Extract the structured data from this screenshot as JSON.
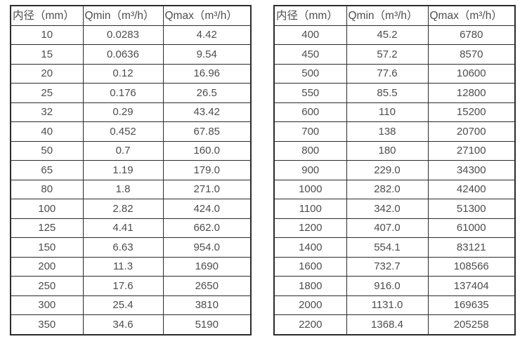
{
  "colors": {
    "background": "#ffffff",
    "border": "#2b2b2b",
    "text": "#4d4d4d"
  },
  "tables": [
    {
      "name": "flow-table-left",
      "headers": [
        "内径（mm）",
        "Qmin（m³/h）",
        "Qmax（m³/h）"
      ],
      "rows": [
        [
          "10",
          "0.0283",
          "4.42"
        ],
        [
          "15",
          "0.0636",
          "9.54"
        ],
        [
          "20",
          "0.12",
          "16.96"
        ],
        [
          "25",
          "0.176",
          "26.5"
        ],
        [
          "32",
          "0.29",
          "43.42"
        ],
        [
          "40",
          "0.452",
          "67.85"
        ],
        [
          "50",
          "0.7",
          "160.0"
        ],
        [
          "65",
          "1.19",
          "179.0"
        ],
        [
          "80",
          "1.8",
          "271.0"
        ],
        [
          "100",
          "2.82",
          "424.0"
        ],
        [
          "125",
          "4.41",
          "662.0"
        ],
        [
          "150",
          "6.63",
          "954.0"
        ],
        [
          "200",
          "11.3",
          "1690"
        ],
        [
          "250",
          "17.6",
          "2650"
        ],
        [
          "300",
          "25.4",
          "3810"
        ],
        [
          "350",
          "34.6",
          "5190"
        ]
      ]
    },
    {
      "name": "flow-table-right",
      "headers": [
        "内径（mm）",
        "Qmin（m³/h）",
        "Qmax（m³/h）"
      ],
      "rows": [
        [
          "400",
          "45.2",
          "6780"
        ],
        [
          "450",
          "57.2",
          "8570"
        ],
        [
          "500",
          "77.6",
          "10600"
        ],
        [
          "550",
          "85.5",
          "12800"
        ],
        [
          "600",
          "110",
          "15200"
        ],
        [
          "700",
          "138",
          "20700"
        ],
        [
          "800",
          "180",
          "27100"
        ],
        [
          "900",
          "229.0",
          "34300"
        ],
        [
          "1000",
          "282.0",
          "42400"
        ],
        [
          "1100",
          "342.0",
          "51300"
        ],
        [
          "1200",
          "407.0",
          "61000"
        ],
        [
          "1400",
          "554.1",
          "83121"
        ],
        [
          "1600",
          "732.7",
          "108566"
        ],
        [
          "1800",
          "916.0",
          "137404"
        ],
        [
          "2000",
          "1131.0",
          "169635"
        ],
        [
          "2200",
          "1368.4",
          "205258"
        ]
      ]
    }
  ]
}
